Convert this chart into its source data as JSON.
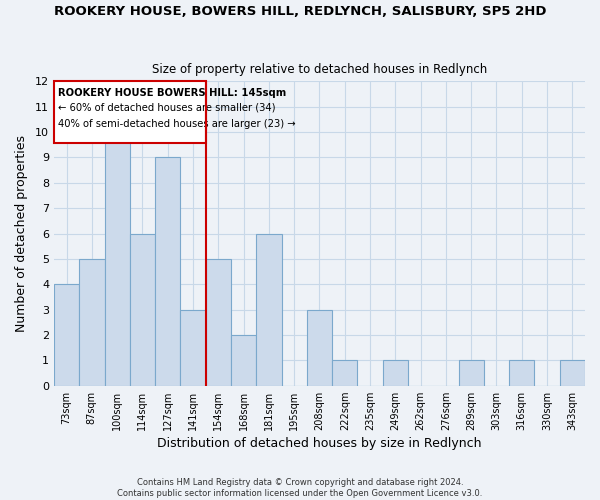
{
  "title": "ROOKERY HOUSE, BOWERS HILL, REDLYNCH, SALISBURY, SP5 2HD",
  "subtitle": "Size of property relative to detached houses in Redlynch",
  "xlabel": "Distribution of detached houses by size in Redlynch",
  "ylabel": "Number of detached properties",
  "bin_labels": [
    "73sqm",
    "87sqm",
    "100sqm",
    "114sqm",
    "127sqm",
    "141sqm",
    "154sqm",
    "168sqm",
    "181sqm",
    "195sqm",
    "208sqm",
    "222sqm",
    "235sqm",
    "249sqm",
    "262sqm",
    "276sqm",
    "289sqm",
    "303sqm",
    "316sqm",
    "330sqm",
    "343sqm"
  ],
  "bar_heights": [
    4,
    5,
    10,
    6,
    9,
    3,
    5,
    2,
    6,
    0,
    3,
    1,
    0,
    1,
    0,
    0,
    1,
    0,
    1,
    0,
    1
  ],
  "bar_color": "#ccdaeb",
  "bar_edge_color": "#7ba8cc",
  "highlight_bar_index": 5,
  "highlight_color": "#cc0000",
  "ylim": [
    0,
    12
  ],
  "yticks": [
    0,
    1,
    2,
    3,
    4,
    5,
    6,
    7,
    8,
    9,
    10,
    11,
    12
  ],
  "annotation_box_text_line1": "ROOKERY HOUSE BOWERS HILL: 145sqm",
  "annotation_box_text_line2": "← 60% of detached houses are smaller (34)",
  "annotation_box_text_line3": "40% of semi-detached houses are larger (23) →",
  "footer_line1": "Contains HM Land Registry data © Crown copyright and database right 2024.",
  "footer_line2": "Contains public sector information licensed under the Open Government Licence v3.0.",
  "grid_color": "#c8d8e8",
  "background_color": "#eef2f7"
}
